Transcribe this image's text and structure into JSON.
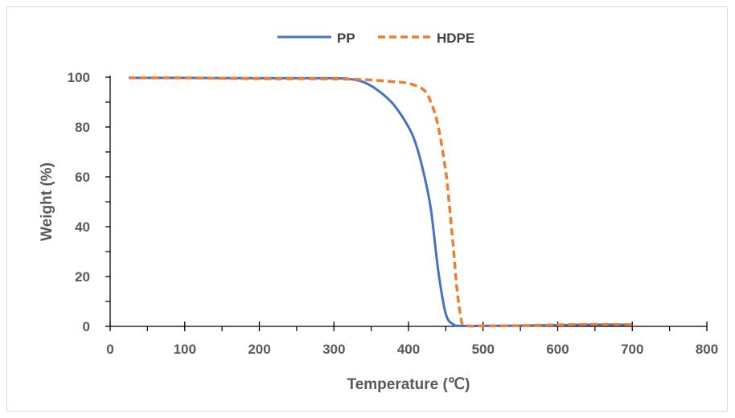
{
  "chart_data": {
    "type": "line",
    "title": "",
    "xlabel": "Temperature  (℃)",
    "ylabel": "Weight (%)",
    "xlim": [
      0,
      800
    ],
    "ylim": [
      0,
      100
    ],
    "x_ticks": [
      "0",
      "100",
      "200",
      "300",
      "400",
      "500",
      "600",
      "700",
      "800"
    ],
    "y_ticks": [
      "0",
      "20",
      "40",
      "60",
      "80",
      "100"
    ],
    "grid": false,
    "legend_position": "top-center",
    "series": [
      {
        "name": "PP",
        "color": "#4472c4",
        "style": "solid",
        "x": [
          25,
          100,
          200,
          300,
          320,
          340,
          360,
          380,
          400,
          410,
          420,
          430,
          440,
          450,
          460,
          470,
          500,
          550,
          600,
          650,
          700
        ],
        "y": [
          99.7,
          99.7,
          99.6,
          99.6,
          99.3,
          98,
          94.5,
          89,
          80,
          73,
          62,
          47,
          22,
          5,
          0.8,
          0.2,
          0.2,
          0.3,
          0.5,
          0.7,
          0.6
        ]
      },
      {
        "name": "HDPE",
        "color": "#ed7d31",
        "style": "dashed",
        "x": [
          25,
          100,
          200,
          300,
          340,
          380,
          400,
          420,
          430,
          440,
          450,
          455,
          460,
          465,
          470,
          475,
          500,
          550,
          600,
          650,
          700
        ],
        "y": [
          99.7,
          99.7,
          99.4,
          99.3,
          99,
          98.2,
          97.5,
          95,
          90,
          80,
          62,
          48,
          32,
          15,
          4,
          0.5,
          0.2,
          0.3,
          0.6,
          0.8,
          0.7
        ]
      }
    ]
  }
}
